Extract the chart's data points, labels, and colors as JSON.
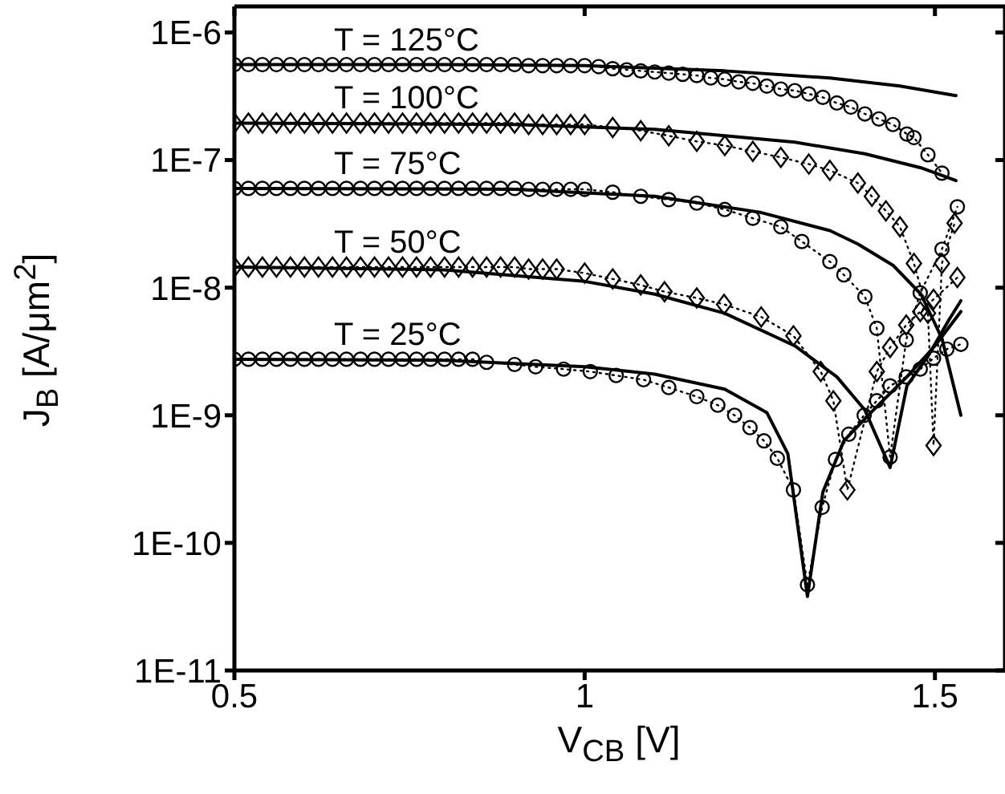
{
  "chart_data": {
    "type": "line",
    "xlabel": "V$_{CB}$ [V]",
    "ylabel": "J$_{B}$ [A/μm$^{2}$]",
    "log": "y",
    "xlim": [
      0.5,
      1.6
    ],
    "xticks": [
      0.5,
      1,
      1.5
    ],
    "ylim": [
      1e-11,
      1.6e-06
    ],
    "yticks": [
      {
        "value": 1e-11,
        "label": "1E-11"
      },
      {
        "value": 1e-10,
        "label": "1E-10"
      },
      {
        "value": 1e-09,
        "label": "1E-9"
      },
      {
        "value": 1e-08,
        "label": "1E-8"
      },
      {
        "value": 1e-07,
        "label": "1E-7"
      },
      {
        "value": 1e-06,
        "label": "1E-6"
      }
    ],
    "series": [
      {
        "name": "T = 125°C",
        "color": "#000000",
        "marker": "none",
        "line_style": "solid",
        "x": [
          0.5,
          0.8,
          1.0,
          1.2,
          1.35,
          1.45,
          1.53
        ],
        "values": [
          5.6e-07,
          5.6e-07,
          5.5e-07,
          5e-07,
          4.4e-07,
          3.8e-07,
          3.2e-07
        ]
      },
      {
        "name": "T = 100°C",
        "color": "#000000",
        "marker": "none",
        "line_style": "solid",
        "x": [
          0.5,
          0.9,
          1.1,
          1.3,
          1.4,
          1.48,
          1.53
        ],
        "values": [
          1.95e-07,
          1.9e-07,
          1.74e-07,
          1.38e-07,
          1.12e-07,
          8.7e-08,
          6.9e-08
        ]
      },
      {
        "name": "T = 75°C",
        "color": "#000000",
        "marker": "none",
        "line_style": "solid",
        "x": [
          0.5,
          0.9,
          1.1,
          1.25,
          1.35,
          1.39,
          1.44,
          1.48,
          1.51,
          1.537
        ],
        "values": [
          6e-08,
          5.9e-08,
          5.2e-08,
          3.9e-08,
          2.8e-08,
          2.2e-08,
          1.5e-08,
          8.9e-09,
          4e-09,
          1e-09
        ]
      },
      {
        "name": "T = 50°C",
        "color": "#000000",
        "marker": "none",
        "line_style": "solid",
        "x": [
          0.5,
          0.8,
          1.0,
          1.1,
          1.2,
          1.3,
          1.36,
          1.4,
          1.436,
          1.46,
          1.49,
          1.52,
          1.537
        ],
        "values": [
          1.45e-08,
          1.38e-08,
          1.12e-08,
          8.9e-09,
          6.3e-09,
          3.5e-09,
          2e-09,
          1.1e-09,
          3.9e-10,
          1.7e-09,
          2.9e-09,
          5.6e-09,
          7.9e-09
        ]
      },
      {
        "name": "T = 25°C",
        "color": "#000000",
        "marker": "none",
        "line_style": "solid",
        "x": [
          0.5,
          0.8,
          1.0,
          1.1,
          1.2,
          1.26,
          1.29,
          1.318,
          1.34,
          1.37,
          1.41,
          1.46,
          1.5,
          1.537
        ],
        "values": [
          2.75e-09,
          2.7e-09,
          2.4e-09,
          2.1e-09,
          1.6e-09,
          1.05e-09,
          5e-10,
          3.8e-11,
          2.5e-10,
          6.3e-10,
          1.07e-09,
          2e-09,
          3.5e-09,
          6.5e-09
        ]
      },
      {
        "color": "#000000",
        "marker": "circle",
        "line_style": "dotted",
        "x": [
          0.5,
          0.52,
          0.54,
          0.56,
          0.58,
          0.6,
          0.62,
          0.64,
          0.66,
          0.68,
          0.7,
          0.72,
          0.74,
          0.76,
          0.78,
          0.8,
          0.82,
          0.84,
          0.86,
          0.88,
          0.9,
          0.92,
          0.94,
          0.96,
          0.98,
          1.0,
          1.02,
          1.04,
          1.06,
          1.08,
          1.1,
          1.12,
          1.14,
          1.16,
          1.18,
          1.2,
          1.22,
          1.24,
          1.26,
          1.28,
          1.3,
          1.32,
          1.34,
          1.36,
          1.38,
          1.4,
          1.42,
          1.44,
          1.46,
          1.47,
          1.49,
          1.51
        ],
        "values": [
          5.6e-07,
          5.6e-07,
          5.6e-07,
          5.6e-07,
          5.6e-07,
          5.6e-07,
          5.6e-07,
          5.6e-07,
          5.6e-07,
          5.6e-07,
          5.6e-07,
          5.6e-07,
          5.6e-07,
          5.6e-07,
          5.6e-07,
          5.6e-07,
          5.6e-07,
          5.6e-07,
          5.6e-07,
          5.6e-07,
          5.6e-07,
          5.5e-07,
          5.5e-07,
          5.5e-07,
          5.5e-07,
          5.5e-07,
          5.4e-07,
          5.2e-07,
          5.1e-07,
          5e-07,
          4.9e-07,
          4.8e-07,
          4.7e-07,
          4.6e-07,
          4.4e-07,
          4.3e-07,
          4.1e-07,
          4e-07,
          3.8e-07,
          3.6e-07,
          3.5e-07,
          3.3e-07,
          3.1e-07,
          2.8e-07,
          2.6e-07,
          2.3e-07,
          2.1e-07,
          1.9e-07,
          1.6e-07,
          1.5e-07,
          1.1e-07,
          7.9e-08
        ]
      },
      {
        "color": "#000000",
        "marker": "diamond",
        "line_style": "dotted",
        "x": [
          0.5,
          0.52,
          0.54,
          0.56,
          0.58,
          0.6,
          0.62,
          0.64,
          0.66,
          0.68,
          0.7,
          0.72,
          0.74,
          0.76,
          0.78,
          0.8,
          0.82,
          0.84,
          0.86,
          0.88,
          0.9,
          0.92,
          0.94,
          0.96,
          0.98,
          1.0,
          1.04,
          1.08,
          1.12,
          1.16,
          1.2,
          1.24,
          1.28,
          1.32,
          1.35,
          1.39,
          1.41,
          1.43,
          1.45,
          1.47,
          1.49,
          1.498,
          1.51,
          1.528
        ],
        "values": [
          1.95e-07,
          1.95e-07,
          1.95e-07,
          1.95e-07,
          1.95e-07,
          1.95e-07,
          1.95e-07,
          1.95e-07,
          1.95e-07,
          1.95e-07,
          1.95e-07,
          1.95e-07,
          1.95e-07,
          1.95e-07,
          1.95e-07,
          1.95e-07,
          1.95e-07,
          1.95e-07,
          1.95e-07,
          1.95e-07,
          1.95e-07,
          1.9e-07,
          1.9e-07,
          1.9e-07,
          1.9e-07,
          1.9e-07,
          1.8e-07,
          1.7e-07,
          1.55e-07,
          1.4e-07,
          1.3e-07,
          1.17e-07,
          1.05e-07,
          9.3e-08,
          8.3e-08,
          6.6e-08,
          5.2e-08,
          4e-08,
          3e-08,
          1.55e-08,
          6.3e-09,
          5.8e-10,
          1.55e-08,
          3.2e-08
        ]
      },
      {
        "color": "#000000",
        "marker": "circle",
        "line_style": "dotted",
        "x": [
          0.5,
          0.52,
          0.54,
          0.56,
          0.58,
          0.6,
          0.62,
          0.64,
          0.66,
          0.68,
          0.7,
          0.72,
          0.74,
          0.76,
          0.78,
          0.8,
          0.82,
          0.84,
          0.86,
          0.88,
          0.9,
          0.92,
          0.94,
          0.96,
          0.98,
          1.0,
          1.04,
          1.08,
          1.12,
          1.16,
          1.2,
          1.24,
          1.28,
          1.31,
          1.35,
          1.37,
          1.4,
          1.417,
          1.436,
          1.459,
          1.479,
          1.51,
          1.532
        ],
        "values": [
          6e-08,
          6e-08,
          6e-08,
          6e-08,
          6e-08,
          6e-08,
          6e-08,
          6e-08,
          6e-08,
          6e-08,
          6e-08,
          6e-08,
          6e-08,
          6e-08,
          6e-08,
          6e-08,
          6e-08,
          6e-08,
          6e-08,
          6e-08,
          6e-08,
          5.9e-08,
          5.9e-08,
          5.9e-08,
          5.9e-08,
          5.9e-08,
          5.6e-08,
          5.2e-08,
          4.9e-08,
          4.6e-08,
          4.1e-08,
          3.5e-08,
          3e-08,
          2.3e-08,
          1.6e-08,
          1.26e-08,
          8.5e-09,
          4.8e-09,
          4.7e-10,
          3.9e-09,
          9.1e-09,
          2e-08,
          4.3e-08
        ]
      },
      {
        "color": "#000000",
        "marker": "diamond",
        "line_style": "dotted",
        "x": [
          0.5,
          0.52,
          0.54,
          0.56,
          0.58,
          0.6,
          0.62,
          0.64,
          0.66,
          0.68,
          0.7,
          0.72,
          0.74,
          0.76,
          0.78,
          0.8,
          0.82,
          0.84,
          0.86,
          0.88,
          0.9,
          0.92,
          0.94,
          0.96,
          1.0,
          1.04,
          1.08,
          1.114,
          1.16,
          1.199,
          1.252,
          1.298,
          1.337,
          1.355,
          1.375,
          1.417,
          1.436,
          1.459,
          1.479,
          1.498,
          1.532
        ],
        "values": [
          1.45e-08,
          1.45e-08,
          1.45e-08,
          1.45e-08,
          1.45e-08,
          1.45e-08,
          1.45e-08,
          1.45e-08,
          1.45e-08,
          1.45e-08,
          1.45e-08,
          1.45e-08,
          1.45e-08,
          1.45e-08,
          1.45e-08,
          1.45e-08,
          1.45e-08,
          1.45e-08,
          1.45e-08,
          1.45e-08,
          1.45e-08,
          1.4e-08,
          1.4e-08,
          1.4e-08,
          1.3e-08,
          1.17e-08,
          1.05e-08,
          9.3e-09,
          8.3e-09,
          7.4e-09,
          5.9e-09,
          4.2e-09,
          2.2e-09,
          1.3e-09,
          2.6e-10,
          2.2e-09,
          3.4e-09,
          5.1e-09,
          6.5e-09,
          8.1e-09,
          1.2e-08
        ]
      },
      {
        "color": "#000000",
        "marker": "circle",
        "line_style": "dotted",
        "x": [
          0.5,
          0.52,
          0.54,
          0.56,
          0.58,
          0.6,
          0.62,
          0.64,
          0.66,
          0.68,
          0.7,
          0.72,
          0.74,
          0.76,
          0.78,
          0.8,
          0.82,
          0.84,
          0.86,
          0.9,
          0.93,
          0.97,
          1.008,
          1.045,
          1.084,
          1.12,
          1.16,
          1.19,
          1.214,
          1.236,
          1.256,
          1.275,
          1.298,
          1.318,
          1.339,
          1.358,
          1.377,
          1.399,
          1.417,
          1.436,
          1.459,
          1.479,
          1.498,
          1.517,
          1.537
        ],
        "values": [
          2.75e-09,
          2.75e-09,
          2.75e-09,
          2.75e-09,
          2.75e-09,
          2.75e-09,
          2.75e-09,
          2.75e-09,
          2.75e-09,
          2.75e-09,
          2.75e-09,
          2.75e-09,
          2.75e-09,
          2.75e-09,
          2.75e-09,
          2.75e-09,
          2.75e-09,
          2.75e-09,
          2.6e-09,
          2.5e-09,
          2.4e-09,
          2.3e-09,
          2.2e-09,
          2.05e-09,
          1.9e-09,
          1.65e-09,
          1.4e-09,
          1.2e-09,
          1e-09,
          8e-10,
          6.3e-10,
          4.6e-10,
          2.6e-10,
          4.7e-11,
          1.9e-10,
          4.5e-10,
          7.1e-10,
          1e-09,
          1.3e-09,
          1.7e-09,
          2e-09,
          2.3e-09,
          2.8e-09,
          3.3e-09,
          3.6e-09
        ]
      }
    ]
  }
}
